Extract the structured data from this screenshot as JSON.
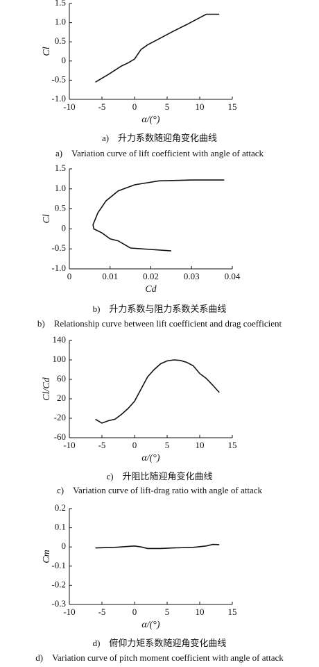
{
  "chart_data": [
    {
      "type": "line",
      "xlabel": "α/(°)",
      "ylabel": "Cl",
      "caption_cn": "a)　升力系数随迎角变化曲线",
      "caption_en": "a)　Variation curve of lift coefficient with angle of attack",
      "x": [
        -6,
        -4,
        -2,
        -1,
        0,
        1,
        2,
        4,
        6,
        8,
        10,
        11,
        12,
        13
      ],
      "values": [
        -0.55,
        -0.35,
        -0.13,
        -0.05,
        0.05,
        0.3,
        0.42,
        0.6,
        0.78,
        0.95,
        1.13,
        1.22,
        1.22,
        1.22
      ],
      "color": "#111111",
      "xlim": [
        -10,
        15
      ],
      "xticks": [
        -10,
        -5,
        0,
        5,
        10,
        15
      ],
      "ylim": [
        -1.0,
        1.5
      ],
      "yticks": [
        {
          "value": -1.0,
          "label": "-1.0"
        },
        -0.5,
        0,
        0.5,
        {
          "value": 1.0,
          "label": "1.0"
        },
        1.5
      ]
    },
    {
      "type": "line",
      "xlabel": "Cd",
      "ylabel": "Cl",
      "caption_cn": "b)　升力系数与阻力系数关系曲线",
      "caption_en": "b)　Relationship curve between lift coefficient and drag coefficient",
      "x": [
        0.025,
        0.015,
        0.012,
        0.01,
        0.008,
        0.006,
        0.0058,
        0.007,
        0.009,
        0.012,
        0.016,
        0.022,
        0.03,
        0.038
      ],
      "values": [
        -0.55,
        -0.48,
        -0.3,
        -0.25,
        -0.1,
        0.0,
        0.1,
        0.4,
        0.7,
        0.95,
        1.1,
        1.2,
        1.22,
        1.22
      ],
      "color": "#111111",
      "xlim": [
        0,
        0.04
      ],
      "xticks": [
        0,
        0.01,
        0.02,
        0.03,
        0.04
      ],
      "ylim": [
        -1.0,
        1.5
      ],
      "yticks": [
        {
          "value": -1.0,
          "label": "-1.0"
        },
        -0.5,
        0,
        0.5,
        {
          "value": 1.0,
          "label": "1.0"
        },
        1.5
      ]
    },
    {
      "type": "line",
      "xlabel": "α/(°)",
      "ylabel": "Cl/Cd",
      "caption_cn": "c)　升阻比随迎角变化曲线",
      "caption_en": "c)　Variation curve of lift-drag ratio with angle of attack",
      "x": [
        -6,
        -5,
        -4,
        -3,
        -2,
        -1,
        0,
        1,
        2,
        3,
        4,
        5,
        6,
        7,
        8,
        9,
        10,
        11,
        12,
        13
      ],
      "values": [
        -22,
        -30,
        -25,
        -22,
        -12,
        0,
        15,
        40,
        65,
        80,
        92,
        98,
        100,
        99,
        95,
        88,
        72,
        62,
        48,
        33
      ],
      "color": "#111111",
      "xlim": [
        -10,
        15
      ],
      "xticks": [
        -10,
        -5,
        0,
        5,
        10,
        15
      ],
      "ylim": [
        -60,
        140
      ],
      "yticks": [
        -60,
        -20,
        20,
        60,
        100,
        140
      ]
    },
    {
      "type": "line",
      "xlabel": "α/(°)",
      "ylabel": "Cm",
      "caption_cn": "d)　俯仰力矩系数随迎角变化曲线",
      "caption_en": "d)　Variation curve of pitch moment coefficient with angle of attack",
      "x": [
        -6,
        -3,
        0,
        1,
        2,
        4,
        6,
        9,
        11,
        12,
        13
      ],
      "values": [
        -0.005,
        -0.002,
        0.005,
        0.0,
        -0.008,
        -0.008,
        -0.005,
        -0.002,
        0.005,
        0.013,
        0.012
      ],
      "color": "#111111",
      "xlim": [
        -10,
        15
      ],
      "xticks": [
        -10,
        -5,
        0,
        5,
        10,
        15
      ],
      "ylim": [
        -0.3,
        0.2
      ],
      "yticks": [
        -0.3,
        -0.2,
        -0.1,
        0,
        0.1,
        0.2
      ]
    }
  ]
}
